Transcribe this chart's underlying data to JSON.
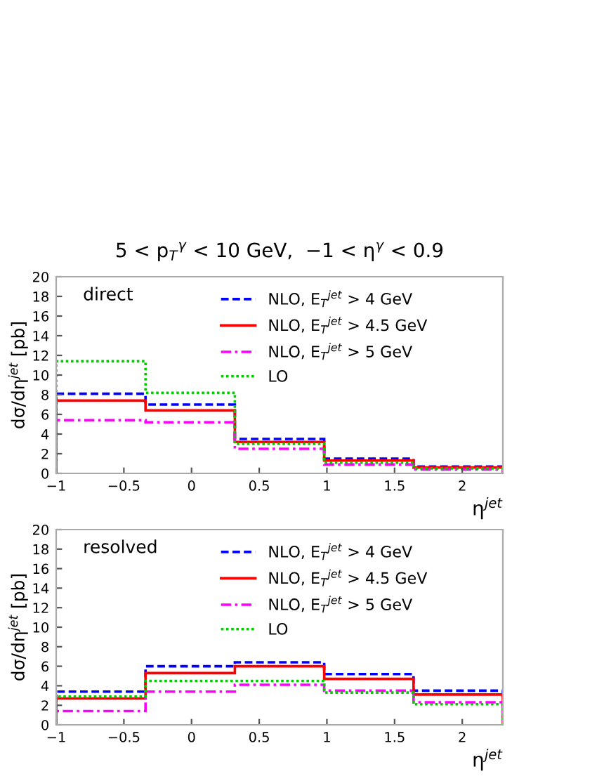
{
  "chart_data": [
    {
      "type": "histogram",
      "title": "5 < p$_{T}$$^{γ}$ < 10 GeV,  −1 < η$^{γ}$ < 0.9",
      "xlabel": "η$^{jet}$",
      "ylabel": "dσ/dη$^{jet}$ [pb]",
      "annotations": [
        "direct"
      ],
      "bins": [
        -1,
        -0.34,
        0.32,
        0.98,
        1.64,
        2.3
      ],
      "series": [
        {
          "name": "NLO, E$_{T}$$^{jet}$ > 4 GeV",
          "color": "#0000ff",
          "line_style": "dashed",
          "values": [
            8.1,
            7.0,
            3.5,
            1.5,
            0.7
          ]
        },
        {
          "name": "NLO, E$_{T}$$^{jet}$ > 4.5 GeV",
          "color": "#ff0000",
          "line_style": "solid",
          "values": [
            7.4,
            6.4,
            3.2,
            1.3,
            0.6
          ]
        },
        {
          "name": "NLO, E$_{T}$$^{jet}$ > 5 GeV",
          "color": "#ff00ff",
          "line_style": "dashdot",
          "values": [
            5.4,
            5.2,
            2.5,
            0.9,
            0.4
          ]
        },
        {
          "name": "LO",
          "color": "#00cc00",
          "line_style": "dotted",
          "values": [
            11.4,
            8.2,
            3.0,
            1.1,
            0.5
          ]
        }
      ],
      "xlim": [
        -1,
        2.3
      ],
      "ylim": [
        0,
        20
      ],
      "xticks": [
        -1,
        -0.5,
        0,
        0.5,
        1,
        1.5,
        2
      ],
      "yticks": [
        0,
        2,
        4,
        6,
        8,
        10,
        12,
        14,
        16,
        18,
        20
      ],
      "legend": "top",
      "grid": false
    },
    {
      "type": "histogram",
      "xlabel": "η$^{jet}$",
      "ylabel": "dσ/dη$^{jet}$ [pb]",
      "annotations": [
        "resolved"
      ],
      "bins": [
        -1,
        -0.34,
        0.32,
        0.98,
        1.64,
        2.3
      ],
      "series": [
        {
          "name": "NLO, E$_{T}$$^{jet}$ > 4 GeV",
          "color": "#0000ff",
          "line_style": "dashed",
          "values": [
            3.4,
            6.0,
            6.4,
            5.2,
            3.5
          ]
        },
        {
          "name": "NLO, E$_{T}$$^{jet}$ > 4.5 GeV",
          "color": "#ff0000",
          "line_style": "solid",
          "values": [
            2.7,
            5.3,
            6.0,
            4.7,
            3.1
          ]
        },
        {
          "name": "NLO, E$_{T}$$^{jet}$ > 5 GeV",
          "color": "#ff00ff",
          "line_style": "dashdot",
          "values": [
            1.4,
            3.4,
            4.1,
            3.5,
            2.3
          ]
        },
        {
          "name": "LO",
          "color": "#00cc00",
          "line_style": "dotted",
          "values": [
            2.9,
            4.5,
            4.5,
            3.3,
            2.1
          ]
        }
      ],
      "xlim": [
        -1,
        2.3
      ],
      "ylim": [
        0,
        20
      ],
      "xticks": [
        -1,
        -0.5,
        0,
        0.5,
        1,
        1.5,
        2
      ],
      "yticks": [
        0,
        2,
        4,
        6,
        8,
        10,
        12,
        14,
        16,
        18,
        20
      ],
      "legend": "top",
      "grid": false
    }
  ]
}
